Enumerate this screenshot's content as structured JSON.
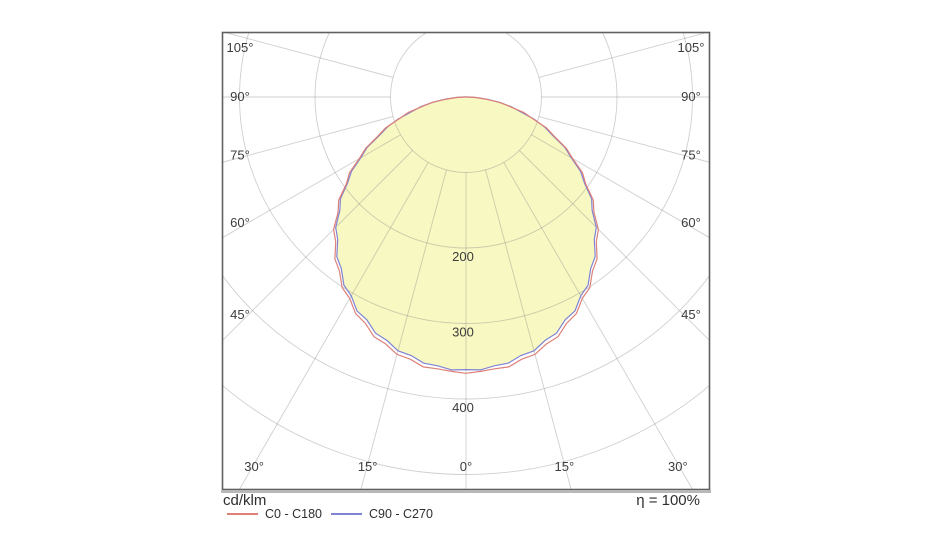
{
  "chart_data": {
    "type": "polar_photometric",
    "unit_label": "cd/klm",
    "efficiency_label": "η = 100%",
    "fill_color": "#f8f8c2",
    "grid": {
      "color": "#8c8c8c",
      "ring_step": 100,
      "ring_max": 500,
      "ray_step_deg": 15,
      "ray_max_deg": 105,
      "ray_inner_radius": 100,
      "ring_value_labels": [
        200,
        300,
        400
      ],
      "side_angle_labels": [
        45,
        60,
        75,
        90,
        105
      ],
      "bottom_angle_labels": [
        0,
        15,
        30
      ],
      "degree_suffix": "°"
    },
    "angles_deg": [
      0,
      3,
      6,
      9,
      12,
      15,
      18,
      21,
      24,
      27,
      30,
      33,
      36,
      39,
      42,
      45,
      48,
      51,
      54,
      57,
      60,
      63,
      66,
      69,
      72,
      75,
      78,
      81,
      84,
      87,
      90
    ],
    "series": [
      {
        "name": "C0 - C180",
        "color": "#dd8077",
        "values": [
          366,
          364,
          362,
          362,
          355,
          353,
          344,
          340,
          328,
          322,
          308,
          301,
          285,
          276,
          258,
          248,
          228,
          217,
          196,
          184,
          163,
          149,
          128,
          114,
          93,
          79,
          58,
          45,
          26,
          13,
          2
        ]
      },
      {
        "name": "C90 - C270",
        "color": "#7f84d4",
        "values": [
          361,
          362,
          358,
          357,
          350,
          348,
          339,
          335,
          323,
          318,
          304,
          297,
          281,
          272,
          254,
          244,
          225,
          214,
          194,
          181,
          161,
          147,
          126,
          112,
          95,
          74,
          61,
          44,
          28,
          13,
          3
        ]
      }
    ]
  }
}
